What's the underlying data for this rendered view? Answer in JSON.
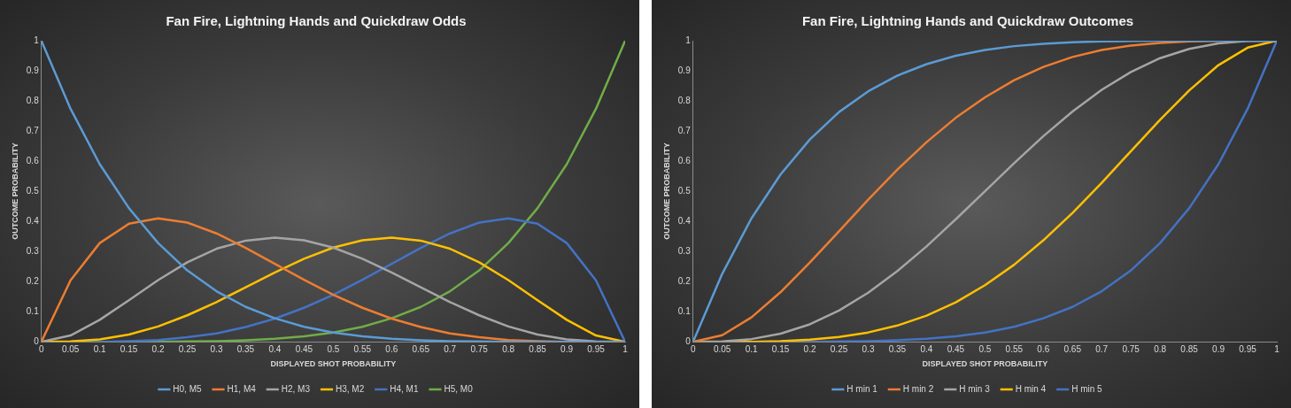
{
  "chart_data": [
    {
      "type": "line",
      "title": "Fan Fire, Lightning Hands and Quickdraw Odds",
      "xlabel": "DISPLAYED SHOT PROBABILITY",
      "ylabel": "OUTCOME PROBABILITY",
      "x": [
        0,
        0.05,
        0.1,
        0.15,
        0.2,
        0.25,
        0.3,
        0.35,
        0.4,
        0.45,
        0.5,
        0.55,
        0.6,
        0.65,
        0.7,
        0.75,
        0.8,
        0.85,
        0.9,
        0.95,
        1
      ],
      "xlim": [
        0,
        1
      ],
      "ylim": [
        0,
        1
      ],
      "xticks": [
        0,
        0.05,
        0.1,
        0.15,
        0.2,
        0.25,
        0.3,
        0.35,
        0.4,
        0.45,
        0.5,
        0.55,
        0.6,
        0.65,
        0.7,
        0.75,
        0.8,
        0.85,
        0.9,
        0.95,
        1
      ],
      "yticks": [
        0,
        0.1,
        0.2,
        0.3,
        0.4,
        0.5,
        0.6,
        0.7,
        0.8,
        0.9,
        1
      ],
      "grid": false,
      "legend": "bottom",
      "marker": "none",
      "series": [
        {
          "name": "H0, M5",
          "color": "#5b9bd5",
          "values": [
            1,
            0.774,
            0.59,
            0.444,
            0.328,
            0.237,
            0.168,
            0.116,
            0.078,
            0.05,
            0.031,
            0.018,
            0.01,
            0.005,
            0.002,
            0.001,
            0,
            0,
            0,
            0,
            0
          ]
        },
        {
          "name": "H1, M4",
          "color": "#ed7d31",
          "values": [
            0,
            0.204,
            0.328,
            0.392,
            0.41,
            0.396,
            0.36,
            0.312,
            0.259,
            0.206,
            0.156,
            0.113,
            0.077,
            0.049,
            0.028,
            0.015,
            0.006,
            0.002,
            0,
            0,
            0
          ]
        },
        {
          "name": "H2, M3",
          "color": "#a5a5a5",
          "values": [
            0,
            0.021,
            0.073,
            0.138,
            0.205,
            0.264,
            0.309,
            0.336,
            0.346,
            0.337,
            0.313,
            0.276,
            0.23,
            0.181,
            0.132,
            0.088,
            0.051,
            0.024,
            0.008,
            0.001,
            0
          ]
        },
        {
          "name": "H3, M2",
          "color": "#ffc000",
          "values": [
            0,
            0.001,
            0.008,
            0.024,
            0.051,
            0.088,
            0.132,
            0.181,
            0.23,
            0.276,
            0.313,
            0.337,
            0.346,
            0.336,
            0.309,
            0.264,
            0.205,
            0.138,
            0.073,
            0.021,
            0
          ]
        },
        {
          "name": "H4, M1",
          "color": "#4472c4",
          "values": [
            0,
            0,
            0,
            0.002,
            0.006,
            0.015,
            0.028,
            0.049,
            0.077,
            0.113,
            0.156,
            0.206,
            0.259,
            0.312,
            0.36,
            0.396,
            0.41,
            0.392,
            0.328,
            0.204,
            0
          ]
        },
        {
          "name": "H5, M0",
          "color": "#70ad47",
          "values": [
            0,
            0,
            0,
            0,
            0,
            0.001,
            0.002,
            0.005,
            0.01,
            0.018,
            0.031,
            0.05,
            0.078,
            0.116,
            0.168,
            0.237,
            0.328,
            0.444,
            0.59,
            0.774,
            1
          ]
        }
      ]
    },
    {
      "type": "line",
      "title": "Fan Fire, Lightning Hands and Quickdraw Outcomes",
      "xlabel": "DISPLAYED SHOT PROBABILITY",
      "ylabel": "OUTCOME PROBABILITY",
      "x": [
        0,
        0.05,
        0.1,
        0.15,
        0.2,
        0.25,
        0.3,
        0.35,
        0.4,
        0.45,
        0.5,
        0.55,
        0.6,
        0.65,
        0.7,
        0.75,
        0.8,
        0.85,
        0.9,
        0.95,
        1
      ],
      "xlim": [
        0,
        1
      ],
      "ylim": [
        0,
        1
      ],
      "xticks": [
        0,
        0.05,
        0.1,
        0.15,
        0.2,
        0.25,
        0.3,
        0.35,
        0.4,
        0.45,
        0.5,
        0.55,
        0.6,
        0.65,
        0.7,
        0.75,
        0.8,
        0.85,
        0.9,
        0.95,
        1
      ],
      "yticks": [
        0,
        0.1,
        0.2,
        0.3,
        0.4,
        0.5,
        0.6,
        0.7,
        0.8,
        0.9,
        1
      ],
      "grid": false,
      "legend": "bottom",
      "marker": "none",
      "series": [
        {
          "name": "H min 1",
          "color": "#5b9bd5",
          "values": [
            0,
            0.226,
            0.41,
            0.556,
            0.672,
            0.763,
            0.832,
            0.884,
            0.922,
            0.95,
            0.969,
            0.982,
            0.99,
            0.995,
            0.998,
            0.999,
            1,
            1,
            1,
            1,
            1
          ]
        },
        {
          "name": "H min 2",
          "color": "#ed7d31",
          "values": [
            0,
            0.022,
            0.081,
            0.165,
            0.263,
            0.367,
            0.472,
            0.572,
            0.663,
            0.744,
            0.812,
            0.869,
            0.913,
            0.946,
            0.969,
            0.984,
            0.993,
            0.998,
            1,
            1,
            1
          ]
        },
        {
          "name": "H min 3",
          "color": "#a5a5a5",
          "values": [
            0,
            0.001,
            0.009,
            0.027,
            0.058,
            0.104,
            0.163,
            0.235,
            0.317,
            0.407,
            0.5,
            0.593,
            0.683,
            0.765,
            0.837,
            0.896,
            0.942,
            0.973,
            0.991,
            0.999,
            1
          ]
        },
        {
          "name": "H min 4",
          "color": "#ffc000",
          "values": [
            0,
            0,
            0,
            0.002,
            0.007,
            0.016,
            0.031,
            0.054,
            0.087,
            0.131,
            0.188,
            0.256,
            0.337,
            0.428,
            0.528,
            0.633,
            0.737,
            0.835,
            0.919,
            0.977,
            1
          ]
        },
        {
          "name": "H min 5",
          "color": "#4472c4",
          "values": [
            0,
            0,
            0,
            0,
            0,
            0.001,
            0.002,
            0.005,
            0.01,
            0.018,
            0.031,
            0.05,
            0.078,
            0.116,
            0.168,
            0.237,
            0.328,
            0.444,
            0.59,
            0.774,
            1
          ]
        }
      ]
    }
  ]
}
